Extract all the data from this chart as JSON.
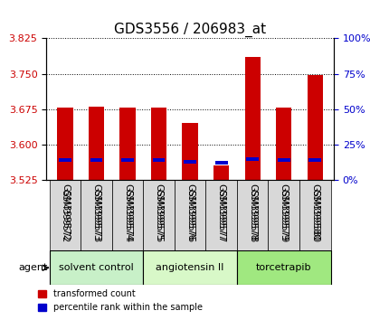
{
  "title": "GDS3556 / 206983_at",
  "samples": [
    "GSM399572",
    "GSM399573",
    "GSM399574",
    "GSM399575",
    "GSM399576",
    "GSM399577",
    "GSM399578",
    "GSM399579",
    "GSM399580"
  ],
  "transformed_counts": [
    3.678,
    3.68,
    3.678,
    3.679,
    3.645,
    3.555,
    3.785,
    3.678,
    3.748
  ],
  "percentile_ranks": [
    14,
    14,
    14,
    14,
    13,
    12,
    15,
    14,
    14
  ],
  "y_min": 3.525,
  "y_max": 3.825,
  "y_ticks": [
    3.525,
    3.6,
    3.675,
    3.75,
    3.825
  ],
  "right_y_ticks": [
    0,
    25,
    50,
    75,
    100
  ],
  "right_y_labels": [
    "0%",
    "25%",
    "50%",
    "75%",
    "100%"
  ],
  "groups": [
    {
      "label": "solvent control",
      "start": 0,
      "end": 3,
      "color": "#c8f0c8"
    },
    {
      "label": "angiotensin II",
      "start": 3,
      "end": 6,
      "color": "#d8f8c8"
    },
    {
      "label": "torcetrapib",
      "start": 6,
      "end": 9,
      "color": "#a0e880"
    }
  ],
  "agent_label": "agent",
  "bar_color": "#cc0000",
  "blue_color": "#0000cc",
  "legend_red_label": "transformed count",
  "legend_blue_label": "percentile rank within the sample",
  "xlabel_color": "#cc0000",
  "ylabel_color": "#cc0000",
  "right_ylabel_color": "#0000cc"
}
